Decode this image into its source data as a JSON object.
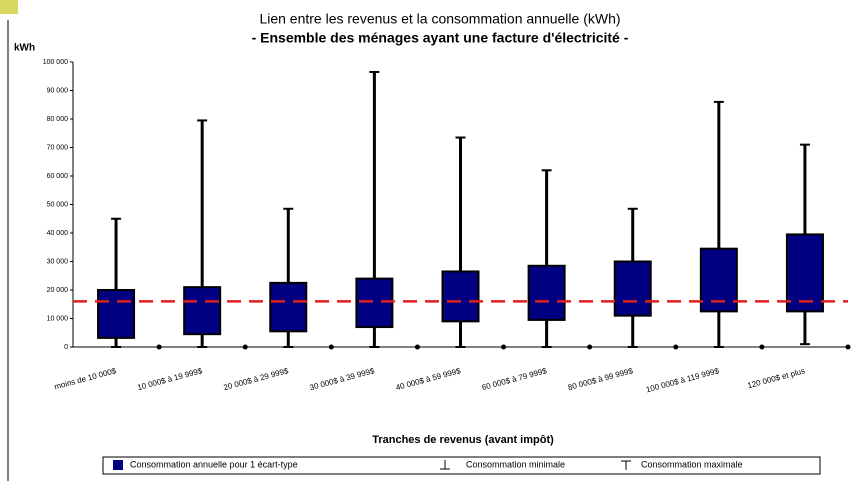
{
  "chart_data": {
    "type": "box",
    "title": "Lien entre les revenus et la consommation annuelle (kWh)",
    "subtitle": "- Ensemble des ménages ayant une facture d'électricité -",
    "y_label": "kWh",
    "x_label": "Tranches de revenus (avant impôt)",
    "categories": [
      "moins de 10 000$",
      "10 000$ à 19 999$",
      "20 000$ à 29 999$",
      "30 000$ à 39 999$",
      "40 000$ à 59 999$",
      "60 000$ à 79 999$",
      "80 000$ à 99 999$",
      "100 000$ à 119 999$",
      "120 000$ et plus"
    ],
    "series": [
      {
        "name": "Consommation annuelle pour 1 écart-type",
        "color": "#000080",
        "low": [
          3200,
          4500,
          5500,
          7000,
          9000,
          9500,
          11000,
          12500,
          12500
        ],
        "high": [
          20000,
          21000,
          22500,
          24000,
          26500,
          28500,
          30000,
          34500,
          39500
        ]
      },
      {
        "name": "Consommation minimale",
        "color": "#000000",
        "values": [
          0,
          0,
          0,
          0,
          0,
          0,
          0,
          0,
          1000
        ]
      },
      {
        "name": "Consommation maximale",
        "color": "#000000",
        "values": [
          45000,
          79500,
          48500,
          96500,
          73500,
          62000,
          48500,
          86000,
          71000
        ]
      }
    ],
    "reference_line": 16000,
    "reference_color": "#e02020",
    "ylim": [
      0,
      100000
    ],
    "yticks": [
      {
        "value": 0,
        "label": "0"
      },
      {
        "value": 10000,
        "label": "10 000"
      },
      {
        "value": 20000,
        "label": "20 000"
      },
      {
        "value": 30000,
        "label": "30 000"
      },
      {
        "value": 40000,
        "label": "40 000"
      },
      {
        "value": 50000,
        "label": "50 000"
      },
      {
        "value": 60000,
        "label": "60 000"
      },
      {
        "value": 70000,
        "label": "70 000"
      },
      {
        "value": 80000,
        "label": "80 000"
      },
      {
        "value": 90000,
        "label": "90 000"
      },
      {
        "value": 100000,
        "label": "100 000"
      }
    ]
  }
}
